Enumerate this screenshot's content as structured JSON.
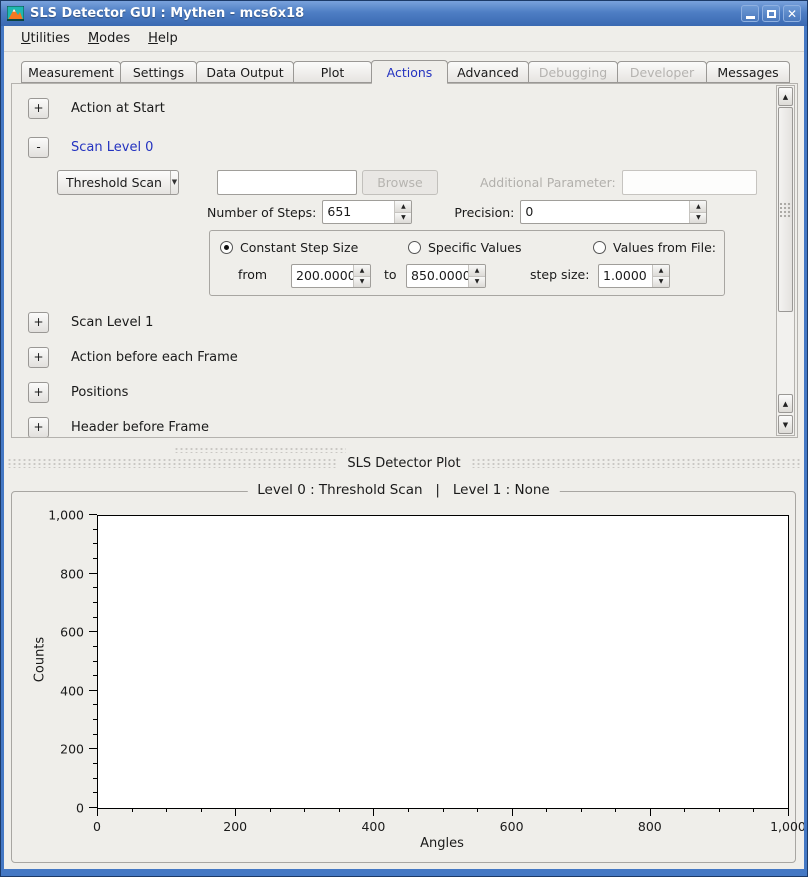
{
  "window": {
    "title": "SLS Detector GUI : Mythen - mcs6x18"
  },
  "menu": {
    "utilities": "Utilities",
    "modes": "Modes",
    "help": "Help"
  },
  "tabs": [
    {
      "label": "Measurement",
      "state": "normal"
    },
    {
      "label": "Settings",
      "state": "normal"
    },
    {
      "label": "Data Output",
      "state": "normal"
    },
    {
      "label": "Plot",
      "state": "normal"
    },
    {
      "label": "Actions",
      "state": "selected"
    },
    {
      "label": "Advanced",
      "state": "normal"
    },
    {
      "label": "Debugging",
      "state": "disabled"
    },
    {
      "label": "Developer",
      "state": "disabled"
    },
    {
      "label": "Messages",
      "state": "normal"
    }
  ],
  "sections": [
    {
      "toggle": "+",
      "label": "Action at Start"
    },
    {
      "toggle": "-",
      "label": "Scan Level 0"
    },
    {
      "toggle": "+",
      "label": "Scan Level 1"
    },
    {
      "toggle": "+",
      "label": "Action before each Frame"
    },
    {
      "toggle": "+",
      "label": "Positions"
    },
    {
      "toggle": "+",
      "label": "Header before Frame"
    }
  ],
  "scan0": {
    "mode_selected": "Threshold Scan",
    "script_value": "",
    "browse_label": "Browse",
    "additional_parameter_label": "Additional Parameter:",
    "additional_parameter_value": "",
    "steps_label": "Number of Steps:",
    "steps_value": "651",
    "precision_label": "Precision:",
    "precision_value": "0",
    "radio_constant_label": "Constant Step Size",
    "radio_specific_label": "Specific Values",
    "radio_file_label": "Values from File:",
    "from_label": "from",
    "from_value": "200.0000",
    "to_label": "to",
    "to_value": "850.0000",
    "step_size_label": "step size:",
    "step_size_value": "1.0000"
  },
  "dock": {
    "title": "SLS Detector Plot"
  },
  "plot": {
    "title": "Level 0 : Threshold Scan   |   Level 1 : None"
  },
  "chart_data": {
    "type": "line",
    "title": "Level 0 : Threshold Scan | Level 1 : None",
    "xlabel": "Angles",
    "ylabel": "Counts",
    "xlim": [
      0,
      1000
    ],
    "ylim": [
      0,
      1000
    ],
    "x_ticks": [
      "0",
      "200",
      "400",
      "600",
      "800",
      "1,000"
    ],
    "y_ticks": [
      "0",
      "200",
      "400",
      "600",
      "800",
      "1,000"
    ],
    "minor_tick_interval": 50,
    "grid": false,
    "legend": "none",
    "series": []
  },
  "icons": {
    "spin_up": "▲",
    "spin_down": "▼",
    "dropdown": "▼",
    "scroll_up": "▲",
    "scroll_down": "▼",
    "close": "✕"
  },
  "colors": {
    "titlebar_blue": "#4a7ac0",
    "accent_text_blue": "#2433c0",
    "window_bg": "#efeeea",
    "canvas_white": "#ffffff"
  }
}
